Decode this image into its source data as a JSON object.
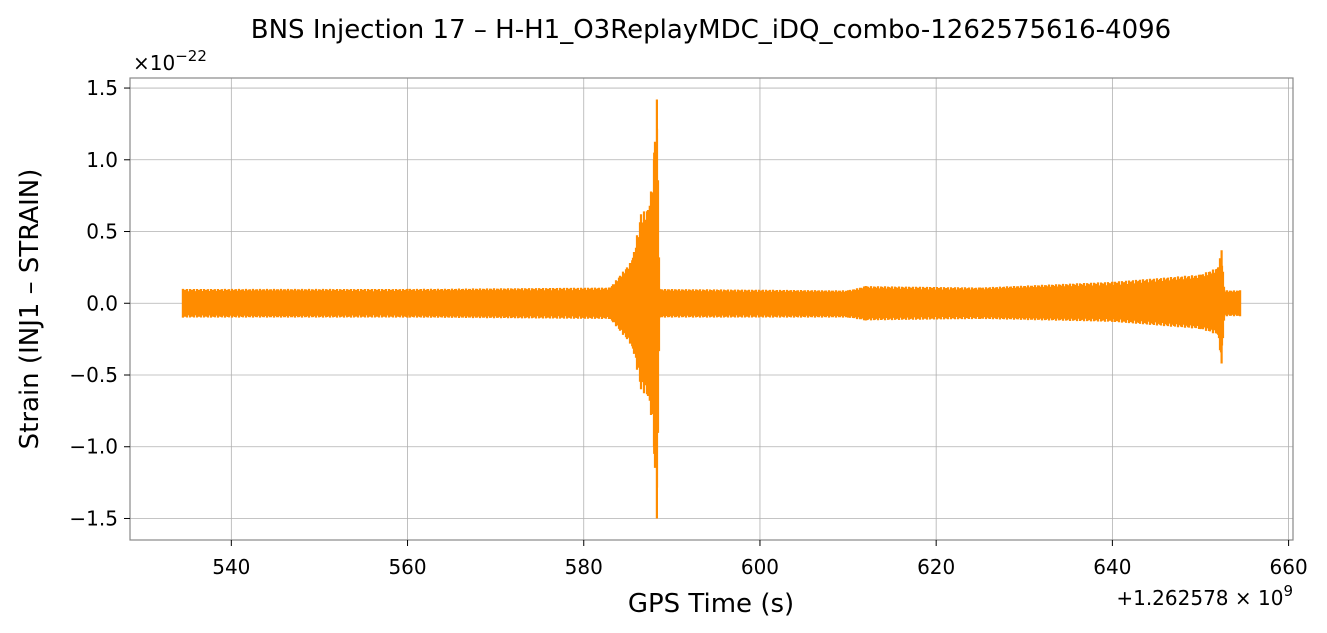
{
  "chart_data": {
    "type": "line",
    "title": "BNS Injection 17 – H-H1_O3ReplayMDC_iDQ_combo-1262575616-4096",
    "xlabel": "GPS Time (s)",
    "ylabel": "Strain (INJ1 – STRAIN)",
    "x_offset_label": "+1.262578 × 10",
    "x_offset_exp": "9",
    "y_scale_label": "×10",
    "y_scale_exp": "−22",
    "xlim": [
      528.5,
      660.5
    ],
    "ylim": [
      -1.65,
      1.57
    ],
    "x_ticks": [
      {
        "value": 540,
        "label": "540"
      },
      {
        "value": 560,
        "label": "560"
      },
      {
        "value": 580,
        "label": "580"
      },
      {
        "value": 600,
        "label": "600"
      },
      {
        "value": 620,
        "label": "620"
      },
      {
        "value": 640,
        "label": "640"
      },
      {
        "value": 660,
        "label": "660"
      }
    ],
    "y_ticks": [
      {
        "value": 1.5,
        "label": "1.5"
      },
      {
        "value": 1.0,
        "label": "1.0"
      },
      {
        "value": 0.5,
        "label": "0.5"
      },
      {
        "value": 0.0,
        "label": "0.0"
      },
      {
        "value": -0.5,
        "label": "−0.5"
      },
      {
        "value": -1.0,
        "label": "−1.0"
      },
      {
        "value": -1.5,
        "label": "−1.5"
      }
    ],
    "grid": true,
    "series": [
      {
        "color": "#ff8c00",
        "envelope": [
          {
            "x": 534.5,
            "upper": 0.1,
            "lower": -0.1
          },
          {
            "x": 560,
            "upper": 0.1,
            "lower": -0.1
          },
          {
            "x": 583,
            "upper": 0.11,
            "lower": -0.11
          },
          {
            "x": 585.5,
            "upper": 0.3,
            "lower": -0.3
          },
          {
            "x": 586.5,
            "upper": 0.62,
            "lower": -0.6
          },
          {
            "x": 587.5,
            "upper": 0.68,
            "lower": -0.68
          },
          {
            "x": 588.0,
            "upper": 1.05,
            "lower": -1.05
          },
          {
            "x": 588.3,
            "upper": 1.42,
            "lower": -1.5
          },
          {
            "x": 588.6,
            "upper": 0.1,
            "lower": -0.1
          },
          {
            "x": 610,
            "upper": 0.09,
            "lower": -0.1
          },
          {
            "x": 612,
            "upper": 0.12,
            "lower": -0.12
          },
          {
            "x": 625,
            "upper": 0.11,
            "lower": -0.11
          },
          {
            "x": 640,
            "upper": 0.15,
            "lower": -0.13
          },
          {
            "x": 650,
            "upper": 0.2,
            "lower": -0.18
          },
          {
            "x": 652.0,
            "upper": 0.25,
            "lower": -0.22
          },
          {
            "x": 652.4,
            "upper": 0.37,
            "lower": -0.42
          },
          {
            "x": 652.7,
            "upper": 0.09,
            "lower": -0.09
          },
          {
            "x": 654.5,
            "upper": 0.09,
            "lower": -0.09
          }
        ]
      }
    ]
  }
}
